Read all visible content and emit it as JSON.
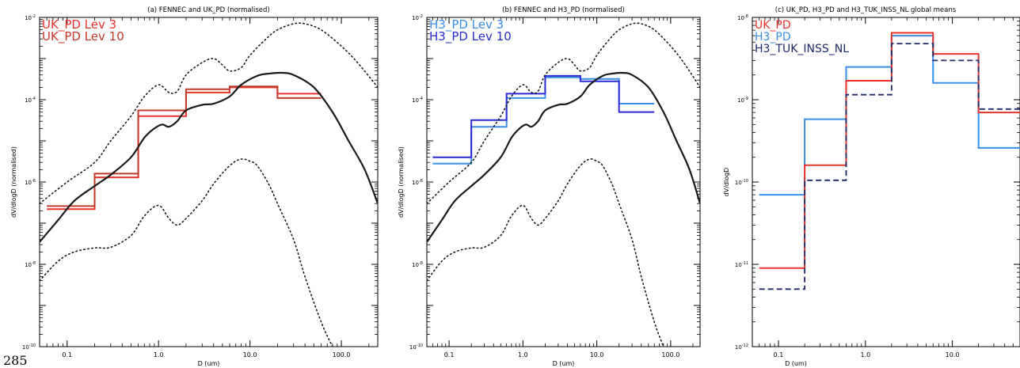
{
  "page": {
    "number": "285"
  },
  "chart_data": [
    {
      "id": "a",
      "type": "line",
      "title": "(a) FENNEC and UK_PD (normalised)",
      "xlabel": "D (um)",
      "ylabel": "dV/dlogD (normalised)",
      "xscale": "log",
      "yscale": "log",
      "xlim": [
        0.05,
        250
      ],
      "ylim": [
        1e-10,
        0.01
      ],
      "xticks": [
        {
          "v": 0.1,
          "label": "0.1"
        },
        {
          "v": 1,
          "label": "1.0"
        },
        {
          "v": 10,
          "label": "10.0"
        },
        {
          "v": 100,
          "label": "100.0"
        }
      ],
      "yticks": [
        {
          "v": 0.01,
          "base": "10",
          "exp": "-2"
        },
        {
          "v": 0.0001,
          "base": "10",
          "exp": "-4"
        },
        {
          "v": 1e-06,
          "base": "10",
          "exp": "-6"
        },
        {
          "v": 1e-08,
          "base": "10",
          "exp": "-8"
        },
        {
          "v": 1e-10,
          "base": "10",
          "exp": "-10"
        }
      ],
      "legend": [
        {
          "label": "UK_PD  Lev 3",
          "color": "#e8332b"
        },
        {
          "label": "UK_PD  Lev 10",
          "color": "#c0392b"
        }
      ],
      "curves": [
        {
          "name": "FENNEC mean",
          "color": "#1a1a1a",
          "style": "solid",
          "width": 2.2,
          "x": [
            0.05,
            0.08,
            0.12,
            0.2,
            0.3,
            0.5,
            0.7,
            0.9,
            1.1,
            1.3,
            1.6,
            2,
            3,
            4,
            6,
            8,
            12,
            16,
            22,
            30,
            50,
            80,
            120,
            180,
            250
          ],
          "y": [
            3.5e-08,
            1.2e-07,
            3.5e-07,
            8e-07,
            1.5e-06,
            4e-06,
            1.2e-05,
            2e-05,
            2.5e-05,
            2.2e-05,
            3e-05,
            5.5e-05,
            7.5e-05,
            8e-05,
            0.00012,
            0.00023,
            0.00038,
            0.00043,
            0.00045,
            0.0004,
            0.0002,
            5e-05,
            1e-05,
            2e-06,
            3e-07
          ]
        },
        {
          "name": "FENNEC upper",
          "color": "#1a1a1a",
          "style": "dotted",
          "width": 1.6,
          "x": [
            0.05,
            0.1,
            0.2,
            0.3,
            0.5,
            0.7,
            1,
            1.3,
            1.6,
            2,
            3,
            4,
            5,
            6,
            8,
            10,
            15,
            20,
            30,
            40,
            60,
            100,
            150,
            250
          ],
          "y": [
            3e-07,
            1e-06,
            3e-06,
            1e-05,
            4e-05,
            0.00012,
            0.00023,
            0.00015,
            0.00016,
            0.0004,
            0.0008,
            0.001,
            0.0007,
            0.0005,
            0.0006,
            0.0012,
            0.003,
            0.005,
            0.007,
            0.007,
            0.005,
            0.002,
            0.0008,
            0.0002
          ]
        },
        {
          "name": "FENNEC lower",
          "color": "#1a1a1a",
          "style": "dotted",
          "width": 1.6,
          "x": [
            0.05,
            0.08,
            0.12,
            0.2,
            0.3,
            0.5,
            0.7,
            1,
            1.3,
            1.6,
            2,
            3,
            4,
            6,
            8,
            10,
            12,
            16,
            20,
            30,
            40,
            60,
            80
          ],
          "y": [
            4e-09,
            1.2e-08,
            2e-08,
            2.5e-08,
            2.6e-08,
            5e-08,
            1.5e-07,
            2.7e-07,
            1.3e-07,
            9e-08,
            1.3e-07,
            3.5e-07,
            9e-07,
            2.5e-06,
            3.6e-06,
            3.2e-06,
            2.5e-06,
            9e-07,
            3e-07,
            4e-08,
            5e-09,
            4e-10,
            1e-10
          ]
        }
      ],
      "steps": [
        {
          "name": "UK_PD Lev 3",
          "color": "#e8332b",
          "edges": [
            0.06,
            0.2,
            0.6,
            2,
            6,
            20,
            60
          ],
          "values": [
            2.2e-07,
            1.3e-06,
            4e-05,
            0.00015,
            0.0002,
            0.00014
          ]
        },
        {
          "name": "UK_PD Lev 10",
          "color": "#c0392b",
          "edges": [
            0.06,
            0.2,
            0.6,
            2,
            6,
            20,
            60
          ],
          "values": [
            2.6e-07,
            1.6e-06,
            5.5e-05,
            0.00018,
            0.00021,
            0.00011
          ]
        }
      ]
    },
    {
      "id": "b",
      "type": "line",
      "title": "(b) FENNEC and H3_PD (normalised)",
      "xlabel": "D (um)",
      "ylabel": "dV/dlogD (normalised)",
      "xscale": "log",
      "yscale": "log",
      "xlim": [
        0.05,
        250
      ],
      "ylim": [
        1e-10,
        0.01
      ],
      "xticks": [
        {
          "v": 0.1,
          "label": "0.1"
        },
        {
          "v": 1,
          "label": "1.0"
        },
        {
          "v": 10,
          "label": "10.0"
        },
        {
          "v": 100,
          "label": "100.0"
        }
      ],
      "yticks": [
        {
          "v": 0.01,
          "base": "10",
          "exp": "-2"
        },
        {
          "v": 0.0001,
          "base": "10",
          "exp": "-4"
        },
        {
          "v": 1e-06,
          "base": "10",
          "exp": "-6"
        },
        {
          "v": 1e-08,
          "base": "10",
          "exp": "-8"
        },
        {
          "v": 1e-10,
          "base": "10",
          "exp": "-10"
        }
      ],
      "legend": [
        {
          "label": "H3_PD  Lev 3",
          "color": "#3b8ee6"
        },
        {
          "label": "H3_PD  Lev 10",
          "color": "#2c2cd4"
        }
      ],
      "curves": [
        {
          "name": "FENNEC mean",
          "color": "#1a1a1a",
          "style": "solid",
          "width": 2.2,
          "x": [
            0.05,
            0.08,
            0.12,
            0.2,
            0.3,
            0.5,
            0.7,
            0.9,
            1.1,
            1.3,
            1.6,
            2,
            3,
            4,
            6,
            8,
            12,
            16,
            22,
            30,
            50,
            80,
            120,
            180,
            250
          ],
          "y": [
            3.5e-08,
            1.2e-07,
            3.5e-07,
            8e-07,
            1.5e-06,
            4e-06,
            1.2e-05,
            2e-05,
            2.5e-05,
            2.2e-05,
            3e-05,
            5.5e-05,
            7.5e-05,
            8e-05,
            0.00012,
            0.00023,
            0.00038,
            0.00043,
            0.00045,
            0.0004,
            0.0002,
            5e-05,
            1e-05,
            2e-06,
            3e-07
          ]
        },
        {
          "name": "FENNEC upper",
          "color": "#1a1a1a",
          "style": "dotted",
          "width": 1.6,
          "x": [
            0.05,
            0.1,
            0.2,
            0.3,
            0.5,
            0.7,
            1,
            1.3,
            1.6,
            2,
            3,
            4,
            5,
            6,
            8,
            10,
            15,
            20,
            30,
            40,
            60,
            100,
            150,
            250
          ],
          "y": [
            3e-07,
            1e-06,
            3e-06,
            1e-05,
            4e-05,
            0.00012,
            0.00023,
            0.00015,
            0.00016,
            0.0004,
            0.0008,
            0.001,
            0.0007,
            0.0005,
            0.0006,
            0.0012,
            0.003,
            0.005,
            0.007,
            0.007,
            0.005,
            0.002,
            0.0008,
            0.0002
          ]
        },
        {
          "name": "FENNEC lower",
          "color": "#1a1a1a",
          "style": "dotted",
          "width": 1.6,
          "x": [
            0.05,
            0.08,
            0.12,
            0.2,
            0.3,
            0.5,
            0.7,
            1,
            1.3,
            1.6,
            2,
            3,
            4,
            6,
            8,
            10,
            12,
            16,
            20,
            30,
            40,
            60,
            80
          ],
          "y": [
            4e-09,
            1.2e-08,
            2e-08,
            2.5e-08,
            2.6e-08,
            5e-08,
            1.5e-07,
            2.7e-07,
            1.3e-07,
            9e-08,
            1.3e-07,
            3.5e-07,
            9e-07,
            2.5e-06,
            3.6e-06,
            3.2e-06,
            2.5e-06,
            9e-07,
            3e-07,
            4e-08,
            5e-09,
            4e-10,
            1e-10
          ]
        }
      ],
      "steps": [
        {
          "name": "H3_PD Lev 3",
          "color": "#3b8ee6",
          "edges": [
            0.06,
            0.2,
            0.6,
            2,
            6,
            20,
            60
          ],
          "values": [
            2.8e-06,
            2.2e-05,
            0.00011,
            0.00035,
            0.00032,
            8e-05
          ]
        },
        {
          "name": "H3_PD Lev 10",
          "color": "#2c2cd4",
          "edges": [
            0.06,
            0.2,
            0.6,
            2,
            6,
            20,
            60
          ],
          "values": [
            4e-06,
            3.2e-05,
            0.00014,
            0.00038,
            0.00028,
            5e-05
          ]
        }
      ]
    },
    {
      "id": "c",
      "type": "line",
      "title": "(c) UK_PD, H3_PD and H3_TUK_INSS_NL global means",
      "xlabel": "D (um)",
      "ylabel": "dV/dlogD",
      "xscale": "log",
      "yscale": "log",
      "xlim": [
        0.05,
        60
      ],
      "ylim": [
        1e-12,
        1e-08
      ],
      "xticks": [
        {
          "v": 0.1,
          "label": "0.1"
        },
        {
          "v": 1,
          "label": "1.0"
        },
        {
          "v": 10,
          "label": "10.0"
        }
      ],
      "yticks": [
        {
          "v": 1e-08,
          "base": "10",
          "exp": "-8"
        },
        {
          "v": 1e-09,
          "base": "10",
          "exp": "-9"
        },
        {
          "v": 1e-10,
          "base": "10",
          "exp": "-10"
        },
        {
          "v": 1e-11,
          "base": "10",
          "exp": "-11"
        },
        {
          "v": 1e-12,
          "base": "10",
          "exp": "-12"
        }
      ],
      "legend": [
        {
          "label": "UK_PD",
          "color": "#e8332b"
        },
        {
          "label": "H3_PD",
          "color": "#3b8ee6"
        },
        {
          "label": "H3_TUK_INSS_NL",
          "color": "#1f2a6b"
        }
      ],
      "curves": [],
      "steps": [
        {
          "name": "H3_PD",
          "color": "#3b8ee6",
          "dash": false,
          "edges": [
            0.06,
            0.2,
            0.6,
            2,
            6,
            20,
            60
          ],
          "values": [
            7e-11,
            5.8e-10,
            2.5e-09,
            6e-09,
            1.6e-09,
            2.6e-10
          ]
        },
        {
          "name": "UK_PD",
          "color": "#e8332b",
          "dash": false,
          "edges": [
            0.06,
            0.2,
            0.6,
            2,
            6,
            20,
            60
          ],
          "values": [
            9e-12,
            1.6e-10,
            1.7e-09,
            6.5e-09,
            3.6e-09,
            7e-10
          ]
        },
        {
          "name": "H3_TUK_INSS_NL",
          "color": "#1f2a6b",
          "dash": true,
          "edges": [
            0.06,
            0.2,
            0.6,
            2,
            6,
            20,
            60
          ],
          "values": [
            5e-12,
            1.05e-10,
            1.15e-09,
            4.8e-09,
            3e-09,
            7.7e-10
          ]
        }
      ]
    }
  ]
}
